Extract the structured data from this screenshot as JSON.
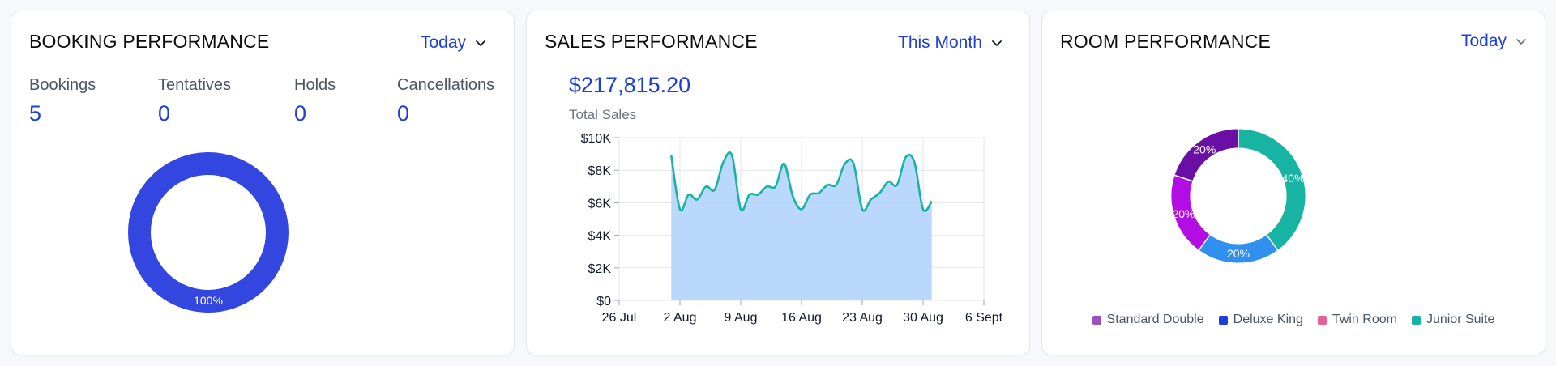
{
  "booking": {
    "title": "BOOKING PERFORMANCE",
    "filter": "Today",
    "stats": [
      {
        "label": "Bookings",
        "value": "5"
      },
      {
        "label": "Tentatives",
        "value": "0"
      },
      {
        "label": "Holds",
        "value": "0"
      },
      {
        "label": "Cancellations",
        "value": "0"
      }
    ],
    "donut_label": "100%",
    "donut_color": "#3347e0"
  },
  "sales": {
    "title": "SALES PERFORMANCE",
    "filter": "This Month",
    "total": "$217,815.20",
    "total_label": "Total Sales"
  },
  "room": {
    "title": "ROOM PERFORMANCE",
    "filter": "Today",
    "legend": [
      {
        "label": "Standard Double",
        "color": "#9b4fc2"
      },
      {
        "label": "Deluxe King",
        "color": "#1d3fd6"
      },
      {
        "label": "Twin Room",
        "color": "#e6609a"
      },
      {
        "label": "Junior Suite",
        "color": "#17b3a3"
      }
    ]
  },
  "chart_data": [
    {
      "type": "area",
      "title": "",
      "xlabel": "",
      "ylabel": "",
      "x_ticks": [
        "26 Jul",
        "2 Aug",
        "9 Aug",
        "16 Aug",
        "23 Aug",
        "30 Aug",
        "6 Sept"
      ],
      "y_ticks": [
        "$0",
        "$2K",
        "$4K",
        "$6K",
        "$8K",
        "$10K"
      ],
      "ylim": [
        0,
        10000
      ],
      "xlim": [
        "2025-07-26",
        "2025-09-06"
      ],
      "grid": true,
      "line_color": "#17b3a3",
      "fill_color": "#b3d4fb",
      "series": [
        {
          "values": [
            {
              "x": "2025-08-01",
              "y": 8900
            },
            {
              "x": "2025-08-02",
              "y": 5600
            },
            {
              "x": "2025-08-03",
              "y": 6500
            },
            {
              "x": "2025-08-04",
              "y": 6200
            },
            {
              "x": "2025-08-05",
              "y": 7000
            },
            {
              "x": "2025-08-06",
              "y": 6800
            },
            {
              "x": "2025-08-07",
              "y": 8500
            },
            {
              "x": "2025-08-08",
              "y": 8900
            },
            {
              "x": "2025-08-09",
              "y": 5600
            },
            {
              "x": "2025-08-10",
              "y": 6500
            },
            {
              "x": "2025-08-11",
              "y": 6500
            },
            {
              "x": "2025-08-12",
              "y": 7000
            },
            {
              "x": "2025-08-13",
              "y": 7000
            },
            {
              "x": "2025-08-14",
              "y": 8400
            },
            {
              "x": "2025-08-15",
              "y": 6400
            },
            {
              "x": "2025-08-16",
              "y": 5600
            },
            {
              "x": "2025-08-17",
              "y": 6500
            },
            {
              "x": "2025-08-18",
              "y": 6600
            },
            {
              "x": "2025-08-19",
              "y": 7100
            },
            {
              "x": "2025-08-20",
              "y": 7100
            },
            {
              "x": "2025-08-21",
              "y": 8400
            },
            {
              "x": "2025-08-22",
              "y": 8400
            },
            {
              "x": "2025-08-23",
              "y": 5600
            },
            {
              "x": "2025-08-24",
              "y": 6200
            },
            {
              "x": "2025-08-25",
              "y": 6600
            },
            {
              "x": "2025-08-26",
              "y": 7300
            },
            {
              "x": "2025-08-27",
              "y": 7100
            },
            {
              "x": "2025-08-28",
              "y": 8800
            },
            {
              "x": "2025-08-29",
              "y": 8500
            },
            {
              "x": "2025-08-30",
              "y": 5600
            },
            {
              "x": "2025-08-31",
              "y": 6100
            }
          ]
        }
      ]
    },
    {
      "type": "pie",
      "title": "",
      "donut": true,
      "values": [
        1
      ],
      "labels": [
        "100%"
      ],
      "colors": [
        "#3347e0"
      ]
    },
    {
      "type": "pie",
      "title": "",
      "donut": true,
      "values": [
        40,
        20,
        20,
        20
      ],
      "labels": [
        "40%",
        "20%",
        "20%",
        "20%"
      ],
      "colors": [
        "#17b3a3",
        "#2f90f0",
        "#b20de3",
        "#6a0fa6"
      ]
    }
  ]
}
